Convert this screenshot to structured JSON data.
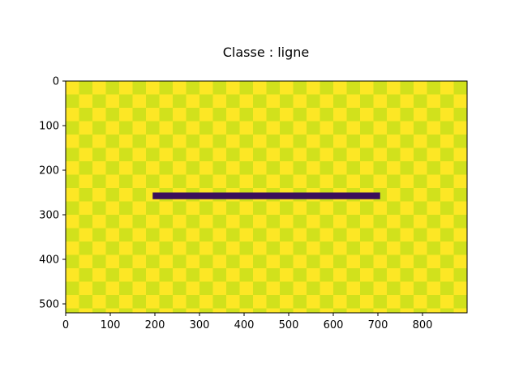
{
  "chart_data": {
    "type": "heatmap",
    "title": "Classe : ligne",
    "xlabel": "",
    "ylabel": "",
    "xlim": [
      0,
      900
    ],
    "ylim": [
      520,
      0
    ],
    "y_inverted": true,
    "grid": false,
    "legend": "none",
    "background": {
      "pattern": "checkerboard",
      "cell_size": 30,
      "colors": [
        "#fde725",
        "#d1e11c"
      ]
    },
    "line": {
      "x_start": 195,
      "x_end": 705,
      "y_top": 250,
      "y_bottom": 265,
      "color": "#3b0f5a"
    },
    "xticks": [
      0,
      100,
      200,
      300,
      400,
      500,
      600,
      700,
      800
    ],
    "yticks": [
      0,
      100,
      200,
      300,
      400,
      500
    ],
    "xtick_labels": [
      "0",
      "100",
      "200",
      "300",
      "400",
      "500",
      "600",
      "700",
      "800"
    ],
    "ytick_labels": [
      "0",
      "100",
      "200",
      "300",
      "400",
      "500"
    ]
  }
}
